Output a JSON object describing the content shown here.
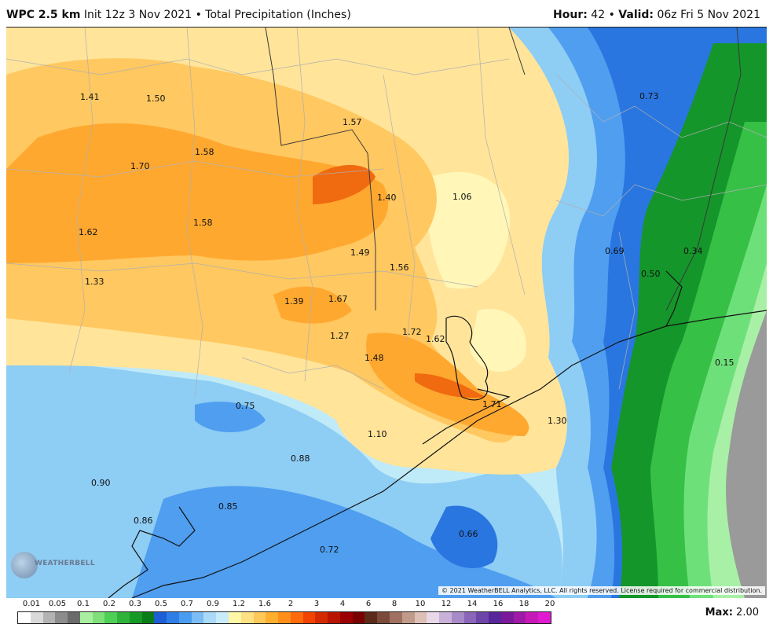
{
  "header": {
    "model": "WPC 2.5 km",
    "init": "Init 12z 3 Nov 2021",
    "bullet": "•",
    "product": "Total Precipitation (Inches)",
    "hour_label": "Hour:",
    "hour_value": "42",
    "valid_label": "Valid:",
    "valid_value": "06z Fri 5 Nov 2021"
  },
  "copyright": "© 2021 WeatherBELL Analytics, LLC. All rights reserved. License required for commercial distribution.",
  "logo_text": "WEATHERBELL",
  "max": {
    "label": "Max:",
    "value": "2.00"
  },
  "legend": {
    "labels": [
      "0.01",
      "0.05",
      "0.1",
      "0.2",
      "0.3",
      "0.5",
      "0.7",
      "0.9",
      "1.2",
      "1.6",
      "2",
      "3",
      "4",
      "6",
      "8",
      "10",
      "12",
      "14",
      "16",
      "18",
      "20"
    ],
    "colors": [
      "#ffffff",
      "#d9d9d9",
      "#b3b3b3",
      "#8c8c8c",
      "#6b6b6b",
      "#a8f0a0",
      "#7fe07a",
      "#4fcf55",
      "#2fb33a",
      "#159a26",
      "#0a7d1a",
      "#1e5fd6",
      "#2f7ee8",
      "#4a9cf0",
      "#7cbcf5",
      "#a9daf7",
      "#c9ecfb",
      "#fff6a6",
      "#ffe082",
      "#ffc85a",
      "#ffae2e",
      "#ff8f1a",
      "#ff6a0a",
      "#f04400",
      "#d42a00",
      "#b81400",
      "#9a0000",
      "#7a0000",
      "#5c2a1a",
      "#7a4a3a",
      "#a07060",
      "#c09a8a",
      "#dcc0b6",
      "#e8d8e8",
      "#c8b0d8",
      "#a88ac8",
      "#8a66b8",
      "#6e46a8",
      "#56269a",
      "#7a1a9a",
      "#a01aa8",
      "#c61ab8",
      "#e01ad0"
    ]
  },
  "map_labels": [
    {
      "text": "1.41"
    },
    {
      "text": "1.50"
    },
    {
      "text": "1.57"
    },
    {
      "text": "1.58"
    },
    {
      "text": "1.70"
    },
    {
      "text": "1.40"
    },
    {
      "text": "1.06"
    },
    {
      "text": "0.73"
    },
    {
      "text": "1.62"
    },
    {
      "text": "1.58"
    },
    {
      "text": "1.49"
    },
    {
      "text": "1.56"
    },
    {
      "text": "0.69"
    },
    {
      "text": "0.34"
    },
    {
      "text": "0.50"
    },
    {
      "text": "1.33"
    },
    {
      "text": "1.39"
    },
    {
      "text": "1.67"
    },
    {
      "text": "1.72"
    },
    {
      "text": "1.27"
    },
    {
      "text": "1.62"
    },
    {
      "text": "1.48"
    },
    {
      "text": "0.15"
    },
    {
      "text": "0.75"
    },
    {
      "text": "1.71"
    },
    {
      "text": "1.30"
    },
    {
      "text": "1.10"
    },
    {
      "text": "0.88"
    },
    {
      "text": "0.90"
    },
    {
      "text": "0.85"
    },
    {
      "text": "0.86"
    },
    {
      "text": "0.66"
    },
    {
      "text": "0.72"
    }
  ],
  "colors": {
    "orange_dark": "#f06a10",
    "orange": "#ffa830",
    "orange_light": "#ffc860",
    "yellow": "#ffe49a",
    "pale_yellow": "#fff6b8",
    "light_blue": "#bfeaf8",
    "sky_blue": "#8ecdf4",
    "blue": "#4f9ef0",
    "deep_blue": "#2a76e0",
    "green_dark": "#14962a",
    "green": "#36c046",
    "green_light": "#6ee07a",
    "green_pale": "#a8f0a6",
    "gray": "#9a9a9a"
  }
}
